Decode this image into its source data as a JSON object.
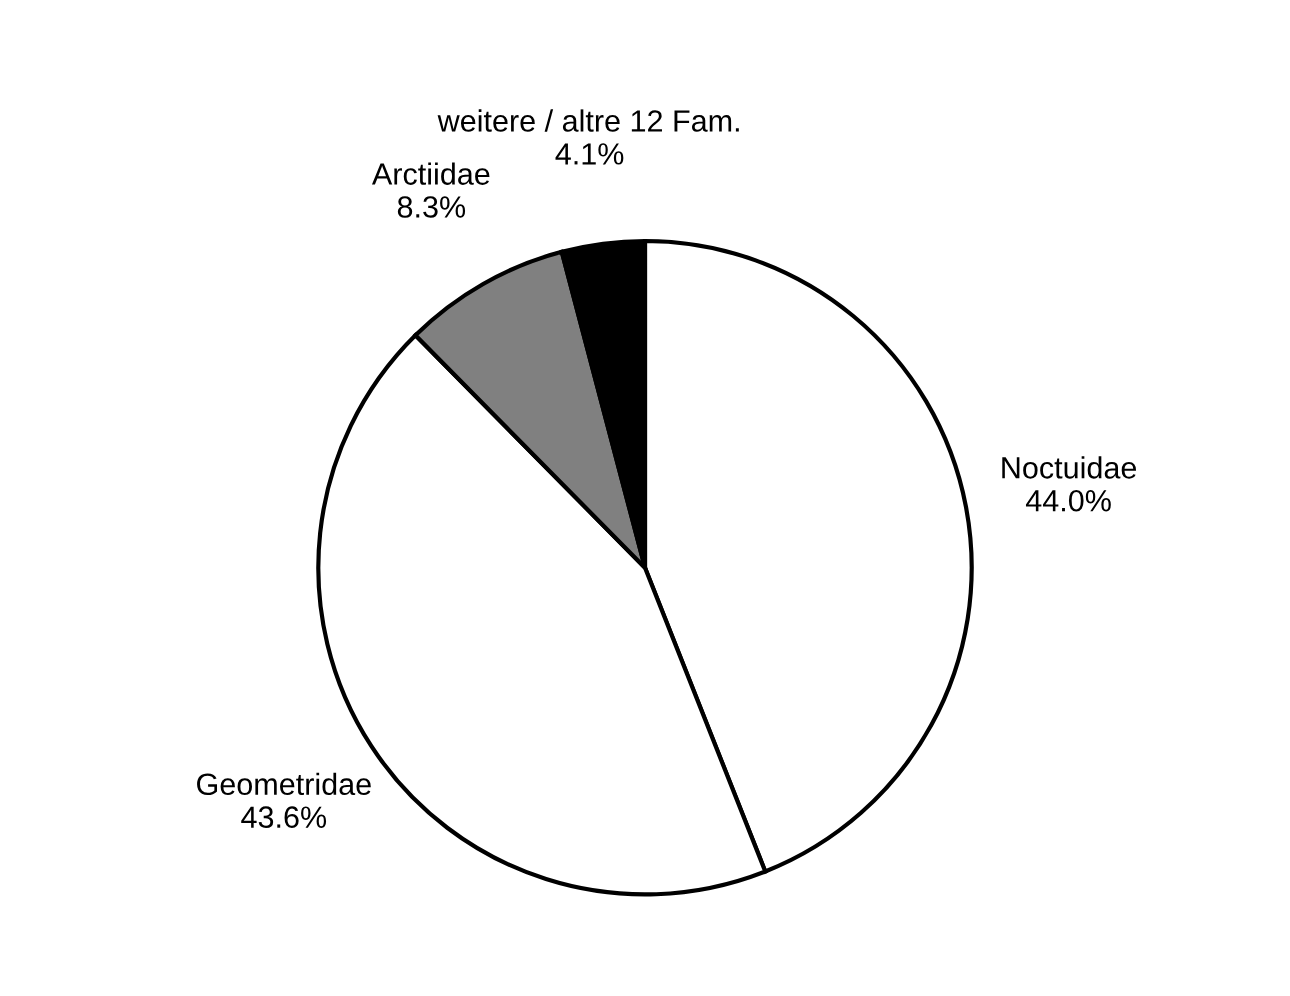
{
  "chart_data": {
    "type": "pie",
    "categories": [
      "Noctuidae",
      "Geometridae",
      "Arctiidae",
      "weitere / altre 12 Fam."
    ],
    "values": [
      44.0,
      43.6,
      8.3,
      4.1
    ],
    "value_labels": [
      "44.0%",
      "43.6%",
      "8.3%",
      "4.1%"
    ],
    "colors": [
      "#ffffff",
      "#ffffff",
      "#808080",
      "#000000"
    ]
  }
}
